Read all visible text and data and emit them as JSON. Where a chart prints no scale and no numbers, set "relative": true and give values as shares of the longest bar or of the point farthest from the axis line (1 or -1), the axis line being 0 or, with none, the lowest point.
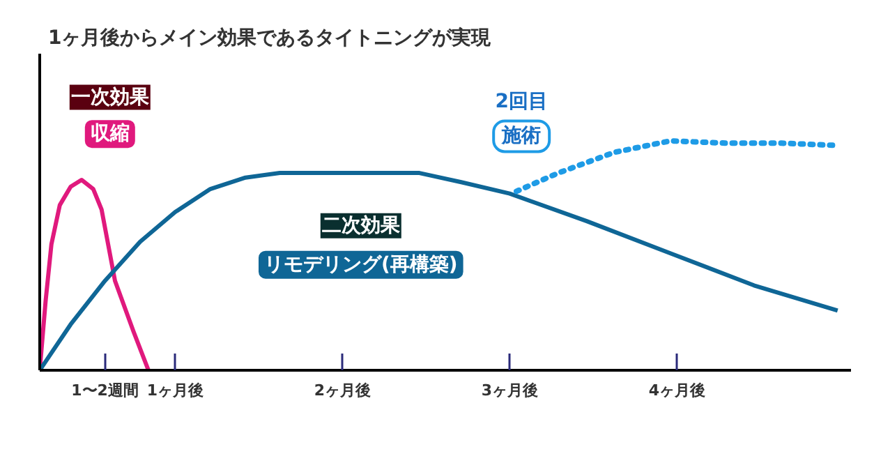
{
  "chart_data": {
    "type": "line",
    "title": "1ヶ月後からメイン効果であるタイトニングが実現",
    "relative": true,
    "xlim": [
      0.19,
      5.04
    ],
    "xticks": [
      {
        "value": 0.58,
        "label": "1〜2週間"
      },
      {
        "value": 1,
        "label": "1ヶ月後"
      },
      {
        "value": 2,
        "label": "2ヶ月後"
      },
      {
        "value": 3,
        "label": "3ヶ月後"
      },
      {
        "value": 4,
        "label": "4ヶ月後"
      }
    ],
    "tick_labels": "x",
    "grid": false,
    "marker": "none",
    "annotations": [
      "一次効果",
      "収縮",
      "二次効果",
      "リモデリング(再構築)",
      "2回目",
      "施術"
    ],
    "series": [
      {
        "color": "#e0197d",
        "line_style": "solid",
        "x": [
          0.19,
          0.225,
          0.26,
          0.31,
          0.375,
          0.44,
          0.51,
          0.56,
          0.64,
          0.75,
          0.84
        ],
        "values": [
          0,
          0.3,
          0.55,
          0.72,
          0.8,
          0.83,
          0.79,
          0.7,
          0.39,
          0.17,
          0
        ]
      },
      {
        "color": "#0f6696",
        "line_style": "solid",
        "x": [
          0.19,
          0.375,
          0.58,
          0.79,
          1.0,
          1.21,
          1.42,
          1.625,
          2.04,
          2.46,
          2.71,
          3.0,
          3.46,
          3.96,
          4.46,
          4.96
        ],
        "values": [
          0,
          0.2,
          0.39,
          0.56,
          0.69,
          0.79,
          0.84,
          0.86,
          0.86,
          0.86,
          0.82,
          0.77,
          0.65,
          0.51,
          0.37,
          0.26
        ]
      },
      {
        "color": "#1e9be6",
        "line_style": "dotted",
        "x": [
          3.04,
          3.29,
          3.625,
          3.96,
          4.29,
          4.625,
          4.96
        ],
        "values": [
          0.78,
          0.86,
          0.95,
          1.0,
          0.99,
          0.99,
          0.98
        ]
      }
    ]
  }
}
